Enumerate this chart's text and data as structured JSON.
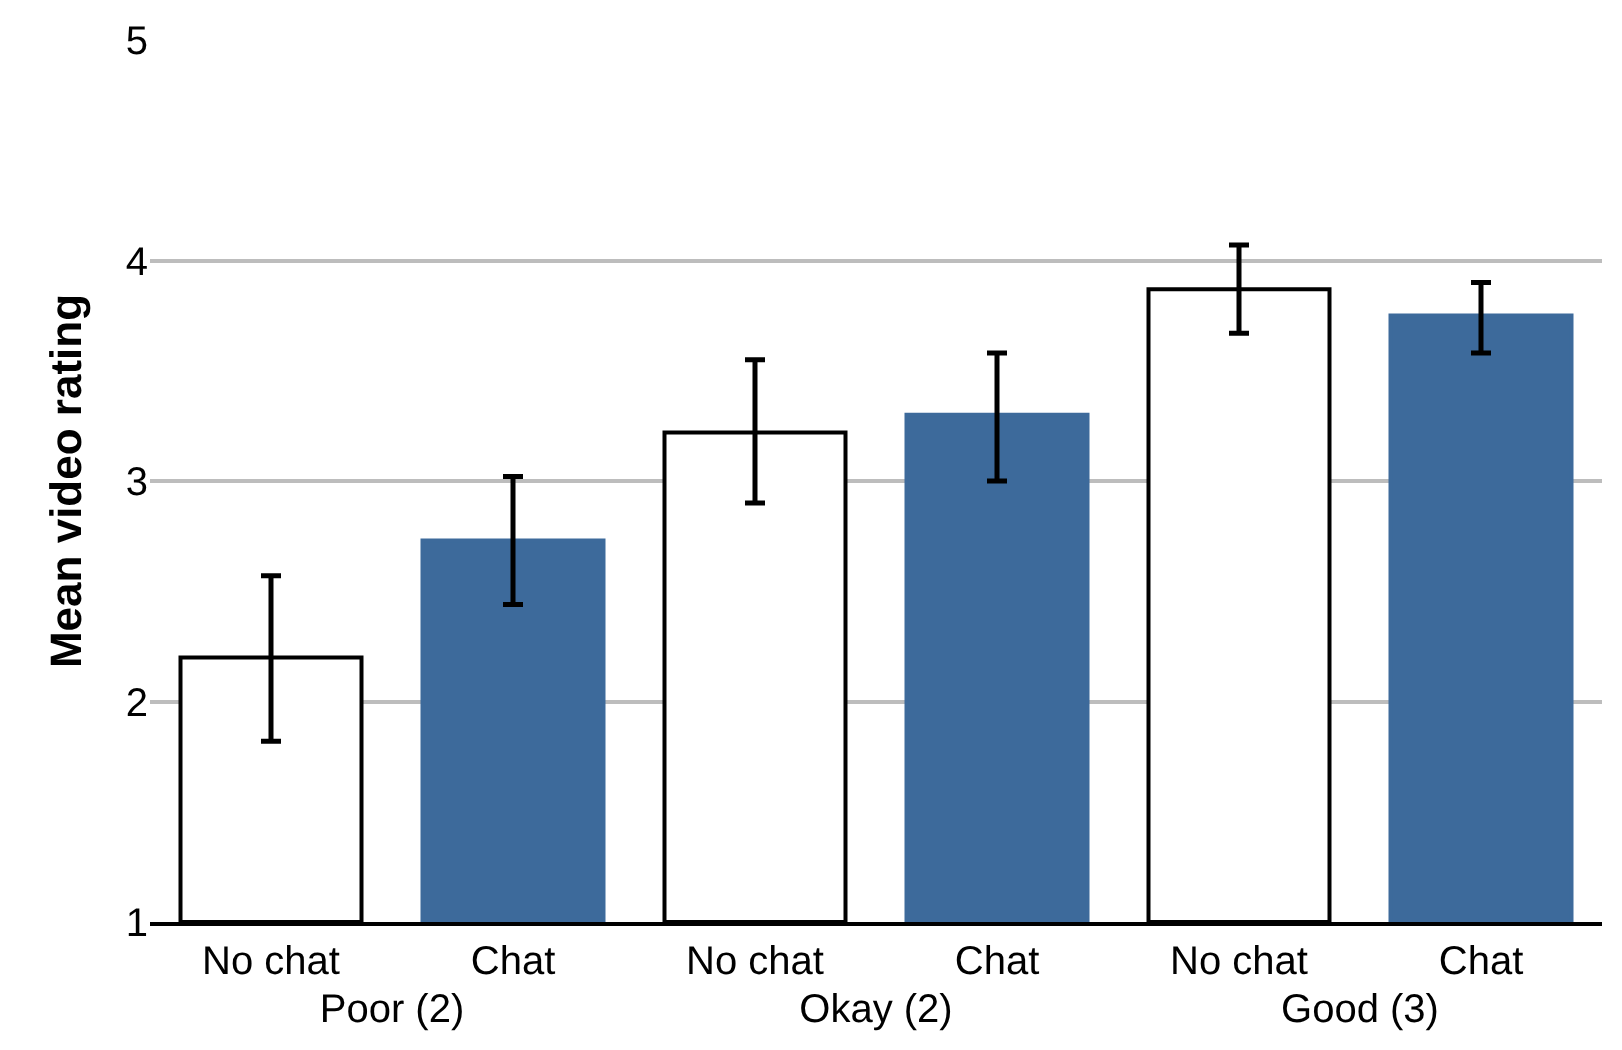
{
  "chart_data": {
    "type": "bar",
    "ylabel": "Mean video rating",
    "categories": [
      "Poor (2)",
      "Okay (2)",
      "Good (3)"
    ],
    "series": [
      {
        "name": "No chat",
        "color": "#ffffff",
        "values": [
          2.2,
          3.22,
          3.87
        ],
        "errors": [
          [
            1.82,
            2.57
          ],
          [
            2.9,
            3.55
          ],
          [
            3.67,
            4.07
          ]
        ]
      },
      {
        "name": "Chat",
        "color": "#3d6a9b",
        "values": [
          2.73,
          3.3,
          3.75
        ],
        "errors": [
          [
            2.44,
            3.02
          ],
          [
            3.0,
            3.58
          ],
          [
            3.58,
            3.9
          ]
        ]
      }
    ],
    "ylim": [
      1,
      5
    ],
    "yticks": [
      1,
      2,
      3,
      4,
      5
    ],
    "grid": "y",
    "legend": false
  }
}
